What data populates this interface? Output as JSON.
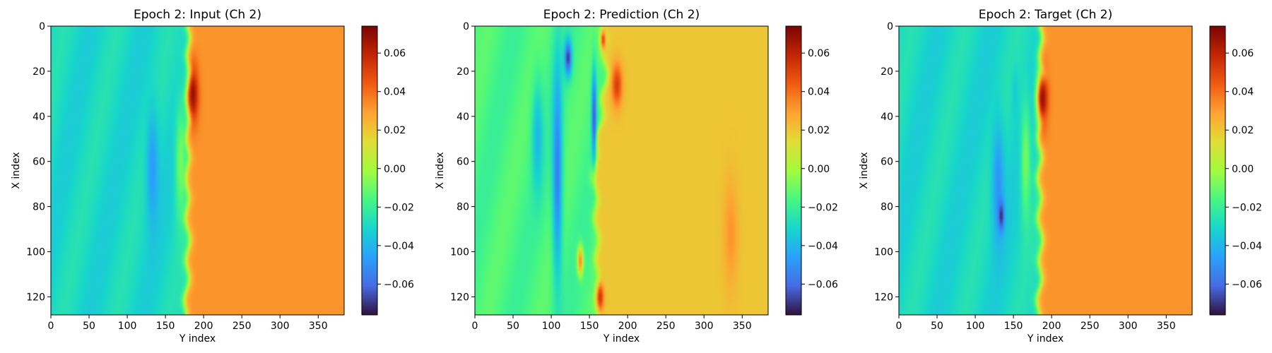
{
  "chart_data": [
    {
      "type": "heatmap",
      "title": "Epoch 2: Input (Ch 2)",
      "xlabel": "Y index",
      "ylabel": "X index",
      "xlim": [
        0,
        384
      ],
      "ylim": [
        128,
        0
      ],
      "x_ticks": [
        0,
        50,
        100,
        150,
        200,
        250,
        300,
        350
      ],
      "y_ticks": [
        0,
        20,
        40,
        60,
        80,
        100,
        120
      ],
      "colormap": "turbo",
      "clim": [
        -0.076,
        0.074
      ],
      "colorbar_ticks": [
        0.06,
        0.04,
        0.02,
        0.0,
        -0.02,
        -0.04,
        -0.06
      ],
      "colorbar_tick_labels": [
        "0.06",
        "0.04",
        "0.02",
        "0.00",
        "−0.02",
        "−0.04",
        "−0.06"
      ],
      "left_value": -0.03,
      "right_value": 0.032,
      "front_position": [
        [
          0,
          178
        ],
        [
          20,
          182
        ],
        [
          40,
          180
        ],
        [
          60,
          178
        ],
        [
          80,
          178
        ],
        [
          100,
          180
        ],
        [
          128,
          176
        ]
      ],
      "features": [
        {
          "kind": "ellipse",
          "y": 133,
          "x": 63,
          "ry_cols": 10,
          "rx_rows": 32,
          "value": -0.048
        },
        {
          "kind": "ellipse",
          "y": 170,
          "x": 60,
          "ry_cols": 9,
          "rx_rows": 32,
          "value": -0.008
        },
        {
          "kind": "ellipse",
          "y": 186,
          "x": 30,
          "ry_cols": 9,
          "rx_rows": 16,
          "value": 0.068
        }
      ]
    },
    {
      "type": "heatmap",
      "title": "Epoch 2: Prediction (Ch 2)",
      "xlabel": "Y index",
      "ylabel": "X index",
      "xlim": [
        0,
        384
      ],
      "ylim": [
        128,
        0
      ],
      "x_ticks": [
        0,
        50,
        100,
        150,
        200,
        250,
        300,
        350
      ],
      "y_ticks": [
        0,
        20,
        40,
        60,
        80,
        100,
        120
      ],
      "colormap": "turbo",
      "clim": [
        -0.076,
        0.074
      ],
      "colorbar_ticks": [
        0.06,
        0.04,
        0.02,
        0.0,
        -0.02,
        -0.04,
        -0.06
      ],
      "colorbar_tick_labels": [
        "0.06",
        "0.04",
        "0.02",
        "0.00",
        "−0.02",
        "−0.04",
        "−0.06"
      ],
      "left_value": -0.016,
      "right_value": 0.02,
      "front_position": [
        [
          0,
          168
        ],
        [
          20,
          172
        ],
        [
          40,
          165
        ],
        [
          60,
          155
        ],
        [
          80,
          158
        ],
        [
          100,
          160
        ],
        [
          128,
          162
        ]
      ],
      "features": [
        {
          "kind": "ellipse",
          "y": 108,
          "x": 64,
          "ry_cols": 8,
          "rx_rows": 62,
          "value": -0.056
        },
        {
          "kind": "ellipse",
          "y": 156,
          "x": 40,
          "ry_cols": 4,
          "rx_rows": 26,
          "value": -0.066
        },
        {
          "kind": "ellipse",
          "y": 122,
          "x": 14,
          "ry_cols": 6,
          "rx_rows": 10,
          "value": -0.07
        },
        {
          "kind": "ellipse",
          "y": 82,
          "x": 50,
          "ry_cols": 9,
          "rx_rows": 30,
          "value": -0.04
        },
        {
          "kind": "ellipse",
          "y": 186,
          "x": 26,
          "ry_cols": 9,
          "rx_rows": 12,
          "value": 0.052
        },
        {
          "kind": "ellipse",
          "y": 168,
          "x": 6,
          "ry_cols": 5,
          "rx_rows": 6,
          "value": 0.05
        },
        {
          "kind": "ellipse",
          "y": 164,
          "x": 120,
          "ry_cols": 6,
          "rx_rows": 8,
          "value": 0.055
        },
        {
          "kind": "ellipse",
          "y": 138,
          "x": 104,
          "ry_cols": 5,
          "rx_rows": 8,
          "value": 0.035
        },
        {
          "kind": "ellipse",
          "y": 335,
          "x": 92,
          "ry_cols": 12,
          "rx_rows": 30,
          "value": 0.032
        }
      ]
    },
    {
      "type": "heatmap",
      "title": "Epoch 2: Target (Ch 2)",
      "xlabel": "Y index",
      "ylabel": "X index",
      "xlim": [
        0,
        384
      ],
      "ylim": [
        128,
        0
      ],
      "x_ticks": [
        0,
        50,
        100,
        150,
        200,
        250,
        300,
        350
      ],
      "y_ticks": [
        0,
        20,
        40,
        60,
        80,
        100,
        120
      ],
      "colormap": "turbo",
      "clim": [
        -0.076,
        0.074
      ],
      "colorbar_ticks": [
        0.06,
        0.04,
        0.02,
        0.0,
        -0.02,
        -0.04,
        -0.06
      ],
      "colorbar_tick_labels": [
        "0.06",
        "0.04",
        "0.02",
        "0.00",
        "−0.02",
        "−0.04",
        "−0.06"
      ],
      "left_value": -0.03,
      "right_value": 0.032,
      "front_position": [
        [
          0,
          184
        ],
        [
          20,
          188
        ],
        [
          40,
          186
        ],
        [
          60,
          184
        ],
        [
          80,
          184
        ],
        [
          100,
          186
        ],
        [
          128,
          182
        ]
      ],
      "features": [
        {
          "kind": "ellipse",
          "y": 130,
          "x": 70,
          "ry_cols": 10,
          "rx_rows": 34,
          "value": -0.05
        },
        {
          "kind": "ellipse",
          "y": 134,
          "x": 84,
          "ry_cols": 5,
          "rx_rows": 8,
          "value": -0.072
        },
        {
          "kind": "ellipse",
          "y": 152,
          "x": 30,
          "ry_cols": 5,
          "rx_rows": 14,
          "value": -0.034
        },
        {
          "kind": "ellipse",
          "y": 166,
          "x": 60,
          "ry_cols": 8,
          "rx_rows": 34,
          "value": -0.008
        },
        {
          "kind": "ellipse",
          "y": 188,
          "x": 32,
          "ry_cols": 9,
          "rx_rows": 16,
          "value": 0.068
        }
      ]
    }
  ]
}
